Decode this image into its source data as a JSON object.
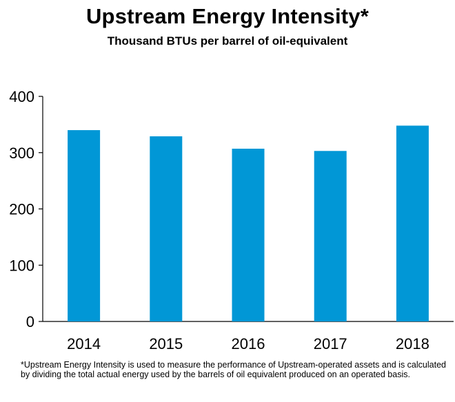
{
  "chart_data": {
    "type": "bar",
    "title": "Upstream Energy Intensity*",
    "subtitle": "Thousand BTUs per barrel of oil-equivalent",
    "categories": [
      "2014",
      "2015",
      "2016",
      "2017",
      "2018"
    ],
    "values": [
      340,
      329,
      307,
      303,
      348
    ],
    "ylim": [
      0,
      400
    ],
    "yticks": [
      0,
      100,
      200,
      300,
      400
    ],
    "xlabel": "",
    "ylabel": "",
    "grid": false,
    "bar_color": "#0197d6",
    "footnote": "*Upstream Energy Intensity is used to measure the performance of Upstream-operated assets and is calculated by dividing the total actual energy used by the barrels of oil equivalent produced on an operated basis."
  }
}
